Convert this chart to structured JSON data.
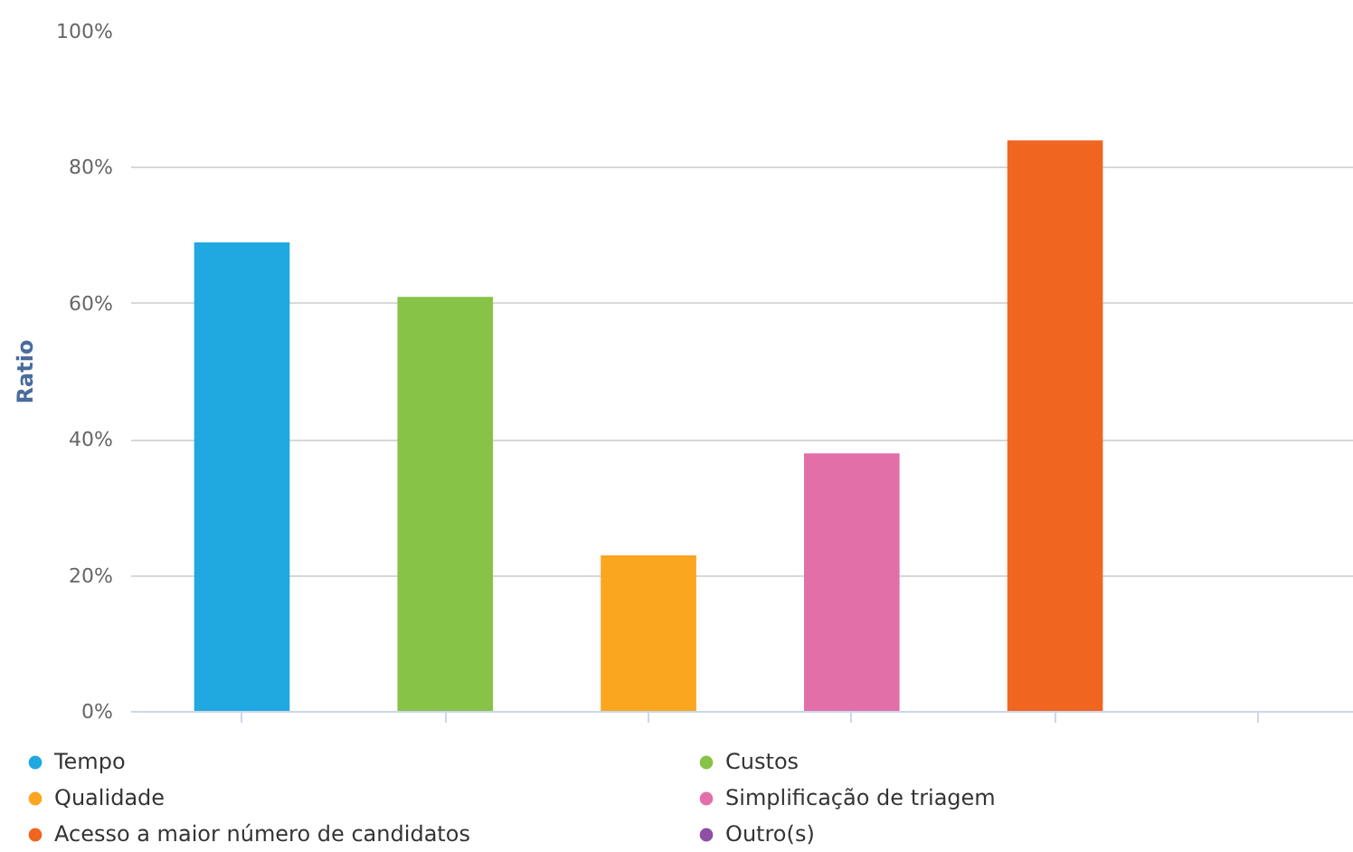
{
  "chart_data": {
    "type": "bar",
    "ylabel": "Ratio",
    "categories": [
      null,
      null,
      null,
      null,
      null,
      null
    ],
    "series": [
      {
        "name": "Tempo",
        "color": "#20a8e0",
        "values": [
          69,
          null,
          null,
          null,
          null,
          null
        ]
      },
      {
        "name": "Custos",
        "color": "#86c347",
        "values": [
          null,
          61,
          null,
          null,
          null,
          null
        ]
      },
      {
        "name": "Qualidade",
        "color": "#fba61f",
        "values": [
          null,
          null,
          23,
          null,
          null,
          null
        ]
      },
      {
        "name": "Simplificação de triagem",
        "color": "#e36fa9",
        "values": [
          null,
          null,
          null,
          38,
          null,
          null
        ]
      },
      {
        "name": "Acesso a maior número de candidatos",
        "color": "#f06520",
        "values": [
          null,
          null,
          null,
          null,
          84,
          null
        ]
      },
      {
        "name": "Outro(s)",
        "color": "#8e4fa5",
        "values": [
          null,
          null,
          null,
          null,
          null,
          0
        ]
      }
    ],
    "ylim": [
      0,
      100
    ],
    "yticks": [
      {
        "value": 0,
        "label": "0%"
      },
      {
        "value": 20,
        "label": "20%"
      },
      {
        "value": 40,
        "label": "40%"
      },
      {
        "value": 60,
        "label": "60%"
      },
      {
        "value": 80,
        "label": "80%"
      },
      {
        "value": 100,
        "label": "100%"
      }
    ],
    "grid": "y",
    "legend": "bottom",
    "tick_labels": "y"
  }
}
